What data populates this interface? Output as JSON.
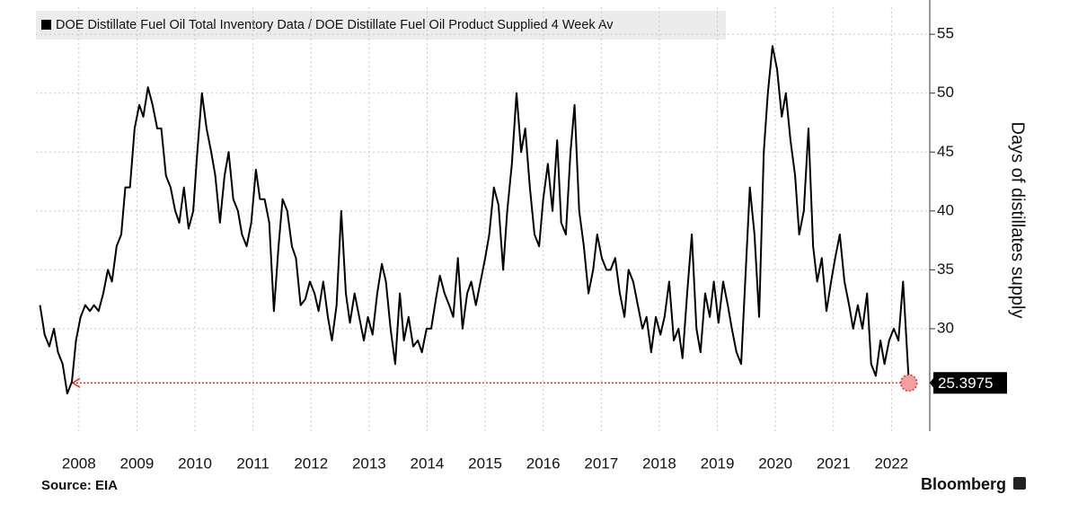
{
  "chart_data": {
    "type": "line",
    "legend": "DOE Distillate Fuel Oil Total Inventory Data / DOE Distillate Fuel Oil Product Supplied 4 Week Av",
    "y_axis_label": "Days of distillates supply",
    "source": "Source: EIA",
    "brand": "Bloomberg",
    "grid": true,
    "xlim": [
      2007.76,
      2023.16
    ],
    "ylim": [
      21.3,
      57.3
    ],
    "xticks": [
      {
        "value": 2008.5,
        "label": "2008"
      },
      {
        "value": 2009.5,
        "label": "2009"
      },
      {
        "value": 2010.5,
        "label": "2010"
      },
      {
        "value": 2011.5,
        "label": "2011"
      },
      {
        "value": 2012.5,
        "label": "2012"
      },
      {
        "value": 2013.5,
        "label": "2013"
      },
      {
        "value": 2014.5,
        "label": "2014"
      },
      {
        "value": 2015.5,
        "label": "2015"
      },
      {
        "value": 2016.5,
        "label": "2016"
      },
      {
        "value": 2017.5,
        "label": "2017"
      },
      {
        "value": 2018.5,
        "label": "2018"
      },
      {
        "value": 2019.5,
        "label": "2019"
      },
      {
        "value": 2020.5,
        "label": "2020"
      },
      {
        "value": 2021.5,
        "label": "2021"
      },
      {
        "value": 2022.5,
        "label": "2022"
      }
    ],
    "yticks": [
      30,
      35,
      40,
      45,
      50,
      55
    ],
    "reference_color": "#e0301e",
    "x": [
      2007.83,
      2007.91,
      2007.99,
      2008.07,
      2008.14,
      2008.22,
      2008.3,
      2008.38,
      2008.45,
      2008.53,
      2008.61,
      2008.69,
      2008.76,
      2008.84,
      2008.92,
      2009.0,
      2009.07,
      2009.15,
      2009.23,
      2009.3,
      2009.38,
      2009.46,
      2009.54,
      2009.61,
      2009.69,
      2009.77,
      2009.85,
      2009.92,
      2010.0,
      2010.08,
      2010.16,
      2010.23,
      2010.31,
      2010.39,
      2010.47,
      2010.54,
      2010.62,
      2010.7,
      2010.78,
      2010.85,
      2010.93,
      2011.01,
      2011.08,
      2011.16,
      2011.24,
      2011.31,
      2011.39,
      2011.47,
      2011.55,
      2011.62,
      2011.7,
      2011.78,
      2011.86,
      2011.94,
      2012.01,
      2012.09,
      2012.17,
      2012.24,
      2012.32,
      2012.4,
      2012.48,
      2012.56,
      2012.63,
      2012.71,
      2012.79,
      2012.86,
      2012.94,
      2013.02,
      2013.1,
      2013.17,
      2013.25,
      2013.33,
      2013.41,
      2013.48,
      2013.56,
      2013.64,
      2013.72,
      2013.79,
      2013.87,
      2013.95,
      2014.03,
      2014.1,
      2014.18,
      2014.26,
      2014.34,
      2014.41,
      2014.49,
      2014.57,
      2014.65,
      2014.72,
      2014.8,
      2014.88,
      2014.95,
      2015.03,
      2015.11,
      2015.19,
      2015.26,
      2015.34,
      2015.42,
      2015.5,
      2015.57,
      2015.65,
      2015.73,
      2015.81,
      2015.88,
      2015.96,
      2016.04,
      2016.12,
      2016.19,
      2016.27,
      2016.35,
      2016.43,
      2016.5,
      2016.58,
      2016.66,
      2016.74,
      2016.81,
      2016.89,
      2016.97,
      2017.04,
      2017.12,
      2017.2,
      2017.28,
      2017.36,
      2017.43,
      2017.51,
      2017.59,
      2017.66,
      2017.74,
      2017.82,
      2017.9,
      2017.97,
      2018.05,
      2018.13,
      2018.21,
      2018.28,
      2018.36,
      2018.44,
      2018.52,
      2018.59,
      2018.67,
      2018.75,
      2018.83,
      2018.9,
      2018.98,
      2019.06,
      2019.14,
      2019.21,
      2019.29,
      2019.37,
      2019.44,
      2019.52,
      2019.6,
      2019.68,
      2019.75,
      2019.83,
      2019.91,
      2019.99,
      2020.06,
      2020.14,
      2020.22,
      2020.3,
      2020.37,
      2020.45,
      2020.53,
      2020.61,
      2020.68,
      2020.76,
      2020.84,
      2020.91,
      2020.99,
      2021.07,
      2021.15,
      2021.22,
      2021.3,
      2021.38,
      2021.46,
      2021.53,
      2021.61,
      2021.69,
      2021.77,
      2021.84,
      2021.92,
      2022.0,
      2022.08,
      2022.15,
      2022.23,
      2022.31,
      2022.38,
      2022.46,
      2022.54,
      2022.62,
      2022.7,
      2022.77,
      2022.8
    ],
    "series": [
      {
        "name": "DOE Distillate Fuel Oil Total Inventory Data / DOE Distillate Fuel Oil Product Supplied 4 Week Av",
        "color": "#000000",
        "last_label": "25.3975",
        "values": [
          32,
          29.5,
          28.5,
          30,
          28,
          27,
          24.5,
          25.5,
          29,
          31,
          32,
          31.5,
          32,
          31.5,
          33,
          35,
          34,
          37,
          38,
          42,
          42,
          47,
          49,
          48,
          50.5,
          49,
          47,
          47,
          43,
          42,
          40,
          39,
          42,
          38.5,
          40,
          45,
          50,
          47,
          45,
          43,
          39,
          43,
          45,
          41,
          40,
          38,
          37,
          39,
          43.5,
          41,
          41,
          39,
          31.5,
          37,
          41,
          40,
          37,
          36,
          32,
          32.5,
          34,
          33,
          31.5,
          34,
          31,
          29,
          32,
          40,
          33,
          30.5,
          33,
          31,
          29,
          31,
          29.5,
          33,
          35.5,
          34,
          30,
          27,
          33,
          29,
          31,
          28.5,
          29,
          28,
          30,
          30,
          32.5,
          34.5,
          33,
          32,
          31,
          36,
          30,
          33,
          34,
          32,
          34,
          36,
          38,
          42,
          40.5,
          35,
          40,
          44,
          50,
          45,
          47,
          42,
          38,
          37,
          41,
          44,
          40,
          46,
          39,
          38,
          45,
          49,
          40,
          37,
          33,
          35,
          38,
          36,
          35,
          35,
          36,
          33,
          31,
          35,
          34,
          32,
          30,
          31,
          28,
          31,
          29.5,
          31,
          34,
          29,
          30,
          27.5,
          33,
          38,
          30,
          28,
          33,
          31,
          34,
          30.5,
          34,
          32,
          30,
          28,
          27,
          35,
          42,
          38,
          31,
          45,
          50,
          54,
          52,
          48,
          50,
          46,
          43,
          38,
          40,
          47,
          37,
          34,
          36,
          31.5,
          34,
          36,
          38,
          34,
          32,
          30,
          32,
          30,
          33,
          27,
          26,
          29,
          27,
          29,
          30,
          29,
          34,
          28,
          25.3975
        ]
      }
    ]
  }
}
